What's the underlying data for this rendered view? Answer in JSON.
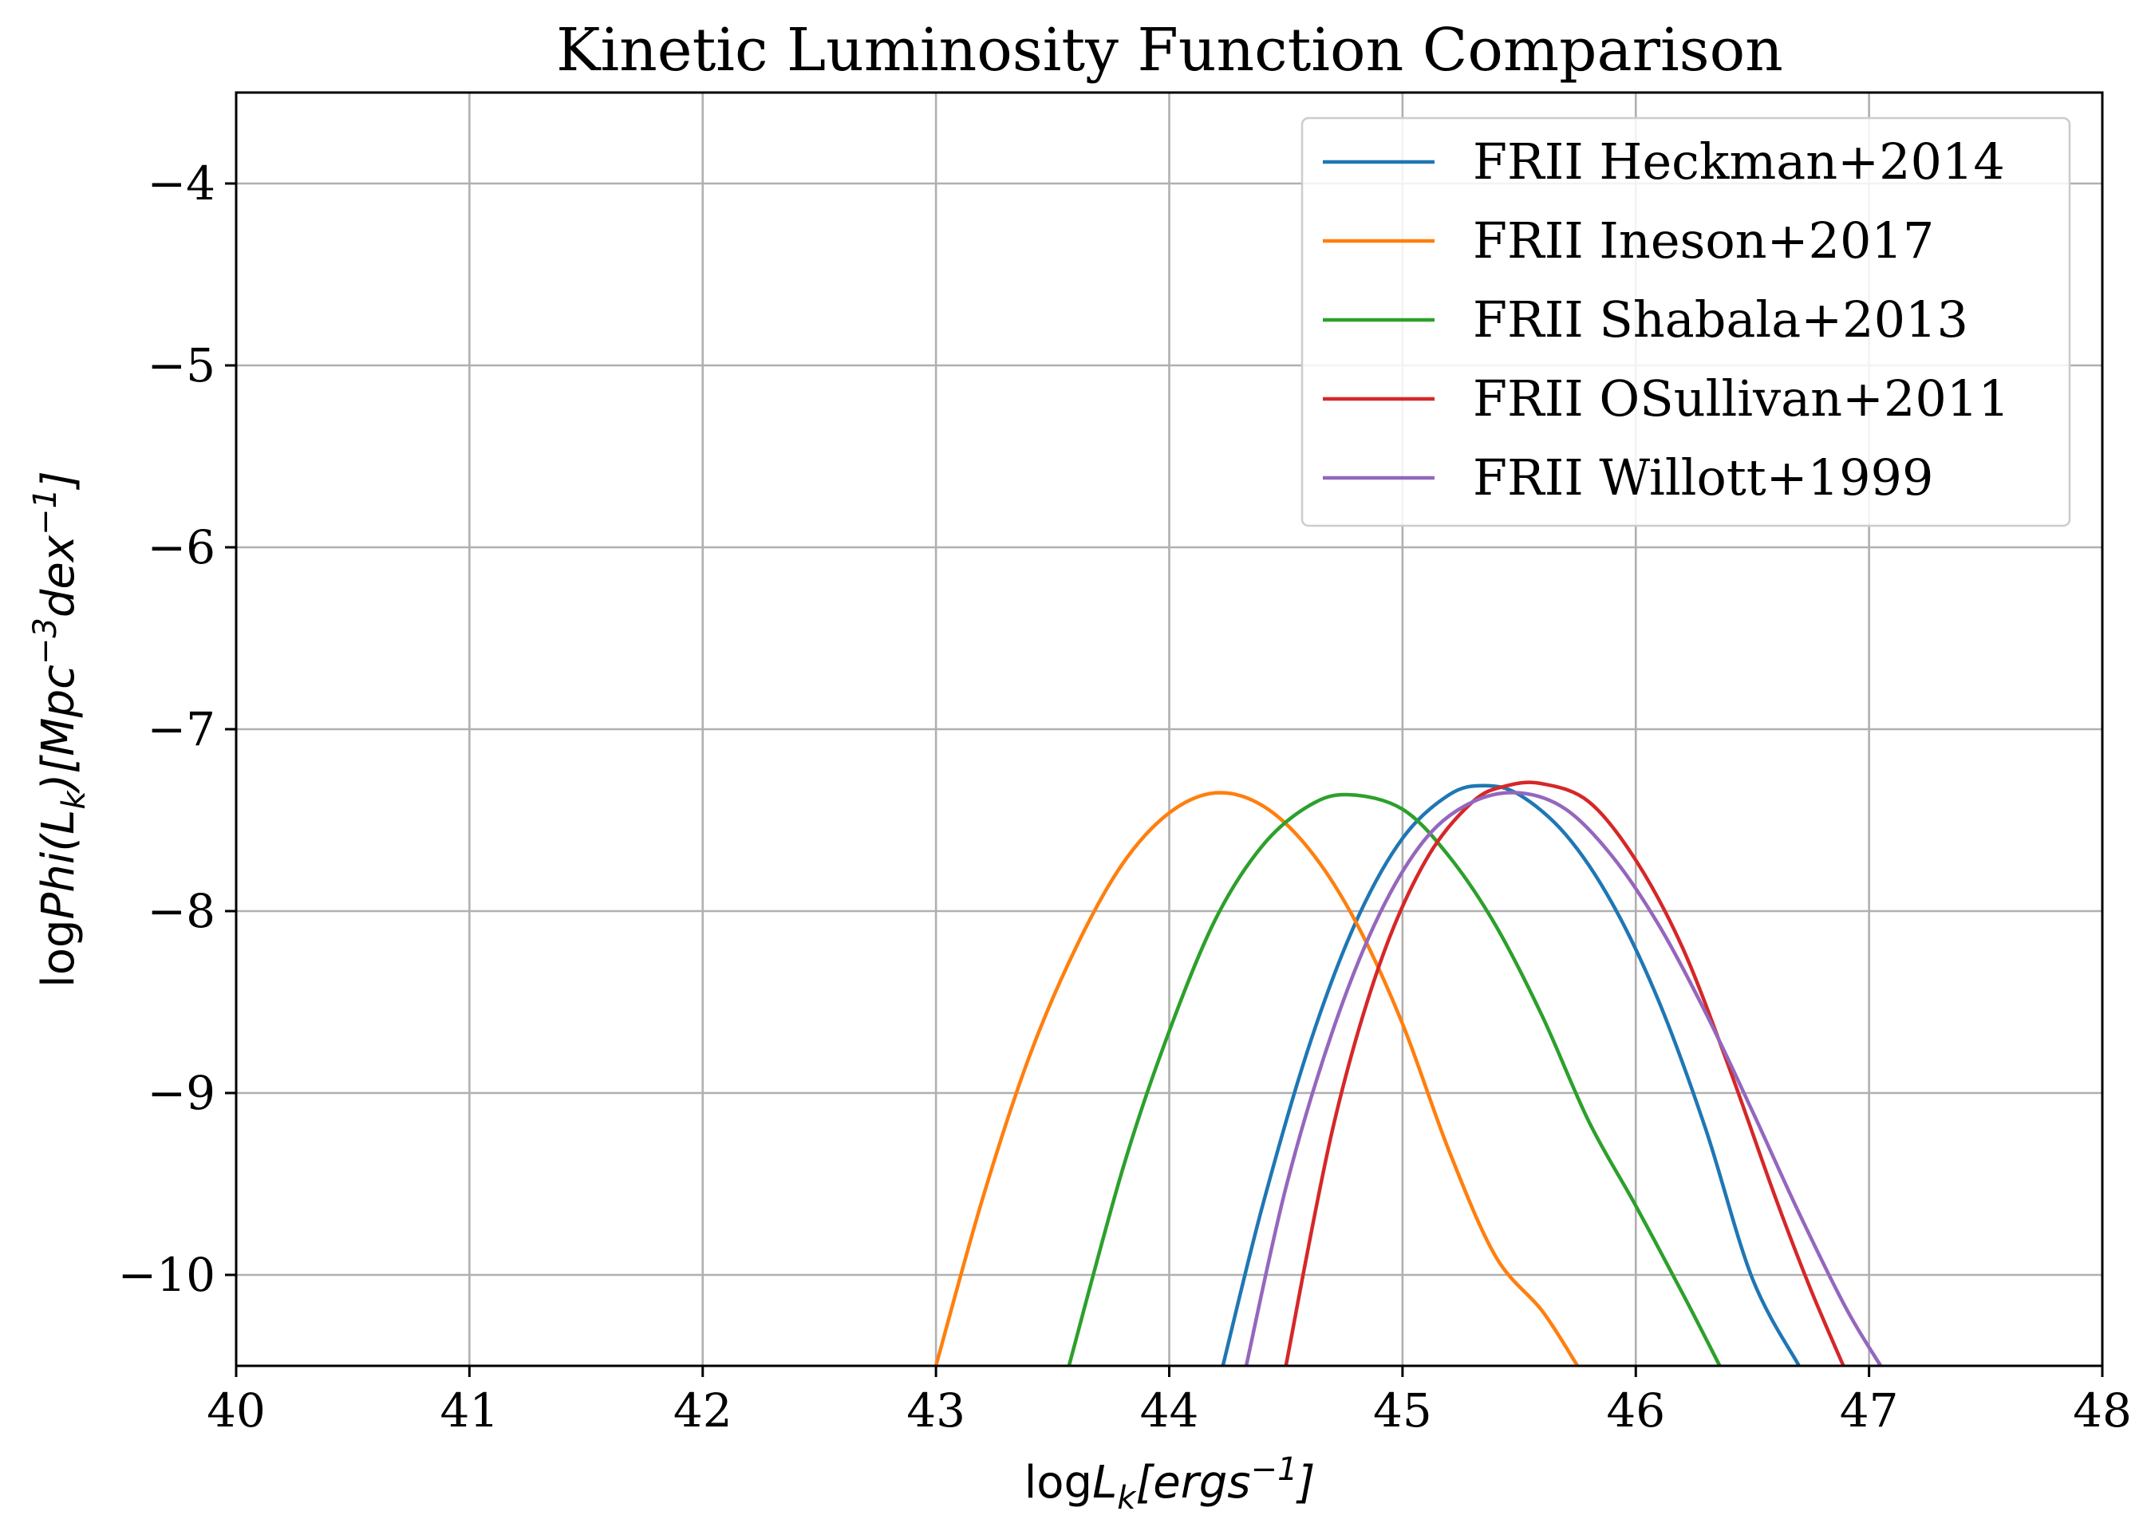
{
  "chart_data": {
    "type": "line",
    "title": "Kinetic Luminosity Function Comparison",
    "xlabel": "logL_k[ergs^{-1}]",
    "ylabel": "logPhi(L_k)[Mpc^{-3}dex^{-1}]",
    "xlim": [
      40,
      48
    ],
    "ylim": [
      -10.5,
      -3.5
    ],
    "xticks": [
      40,
      41,
      42,
      43,
      44,
      45,
      46,
      47,
      48
    ],
    "yticks": [
      -10,
      -9,
      -8,
      -7,
      -6,
      -5,
      -4
    ],
    "xtick_labels": [
      "40",
      "41",
      "42",
      "43",
      "44",
      "45",
      "46",
      "47",
      "48"
    ],
    "ytick_labels": [
      "−10",
      "−9",
      "−8",
      "−7",
      "−6",
      "−5",
      "−4"
    ],
    "grid": true,
    "legend_position": "top-right",
    "series": [
      {
        "name": "FRII Heckman+2014",
        "color": "#1f77b4",
        "x": [
          44.23,
          44.4,
          44.6,
          44.8,
          45.0,
          45.2,
          45.35,
          45.5,
          45.7,
          45.9,
          46.1,
          46.3,
          46.5,
          46.7
        ],
        "y": [
          -10.5,
          -9.62,
          -8.74,
          -8.06,
          -7.6,
          -7.36,
          -7.31,
          -7.36,
          -7.58,
          -7.96,
          -8.5,
          -9.2,
          -10.02,
          -10.5
        ]
      },
      {
        "name": "FRII Ineson+2017",
        "color": "#ff7f0e",
        "x": [
          43.0,
          43.2,
          43.4,
          43.6,
          43.8,
          44.0,
          44.2,
          44.4,
          44.6,
          44.8,
          45.0,
          45.2,
          45.4,
          45.6,
          45.75
        ],
        "y": [
          -10.5,
          -9.58,
          -8.8,
          -8.2,
          -7.74,
          -7.46,
          -7.35,
          -7.42,
          -7.66,
          -8.06,
          -8.62,
          -9.32,
          -9.9,
          -10.2,
          -10.5
        ]
      },
      {
        "name": "FRII Shabala+2013",
        "color": "#2ca02c",
        "x": [
          43.57,
          43.8,
          44.0,
          44.2,
          44.4,
          44.6,
          44.77,
          45.0,
          45.2,
          45.4,
          45.6,
          45.8,
          46.0,
          46.2,
          46.36
        ],
        "y": [
          -10.5,
          -9.42,
          -8.66,
          -8.04,
          -7.64,
          -7.42,
          -7.36,
          -7.44,
          -7.7,
          -8.08,
          -8.58,
          -9.16,
          -9.62,
          -10.1,
          -10.5
        ]
      },
      {
        "name": "FRII OSullivan+2011",
        "color": "#d62728",
        "x": [
          44.5,
          44.7,
          44.9,
          45.1,
          45.3,
          45.45,
          45.6,
          45.8,
          46.0,
          46.2,
          46.4,
          46.6,
          46.75,
          46.89
        ],
        "y": [
          -10.5,
          -9.2,
          -8.3,
          -7.72,
          -7.4,
          -7.31,
          -7.3,
          -7.4,
          -7.72,
          -8.2,
          -8.86,
          -9.58,
          -10.08,
          -10.5
        ]
      },
      {
        "name": "FRII Willott+1999",
        "color": "#9467bd",
        "x": [
          44.33,
          44.5,
          44.7,
          44.9,
          45.1,
          45.3,
          45.5,
          45.7,
          45.9,
          46.1,
          46.3,
          46.5,
          46.7,
          46.9,
          47.05
        ],
        "y": [
          -10.5,
          -9.52,
          -8.66,
          -8.02,
          -7.6,
          -7.4,
          -7.35,
          -7.44,
          -7.7,
          -8.08,
          -8.56,
          -9.1,
          -9.66,
          -10.18,
          -10.5
        ]
      }
    ]
  }
}
